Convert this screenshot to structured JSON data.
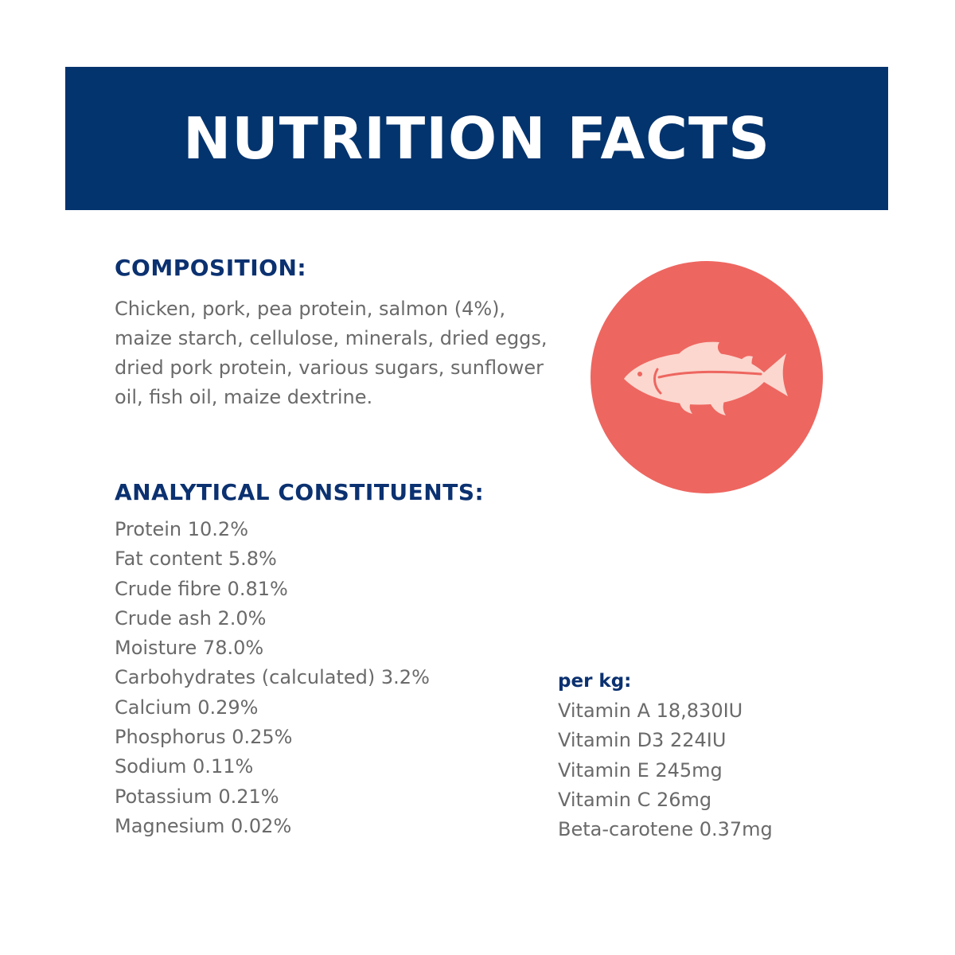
{
  "banner": {
    "title": "NUTRITION FACTS"
  },
  "composition": {
    "heading": "COMPOSITION:",
    "text": "Chicken, pork, pea protein, salmon (4%), maize starch, cellulose, minerals, dried eggs, dried pork protein, various sugars, sunflower oil, fish oil, maize dextrine."
  },
  "constituents": {
    "heading": "ANALYTICAL CONSTITUENTS:",
    "items": [
      "Protein 10.2%",
      "Fat content 5.8%",
      "Crude fibre 0.81%",
      "Crude ash 2.0%",
      "Moisture 78.0%",
      "Carbohydrates (calculated) 3.2%",
      "Calcium 0.29%",
      "Phosphorus 0.25%",
      "Sodium 0.11%",
      "Potassium 0.21%",
      "Magnesium 0.02%"
    ]
  },
  "per_kg": {
    "heading": "per kg:",
    "items": [
      "Vitamin A 18,830IU",
      "Vitamin D3 224IU",
      "Vitamin E 245mg",
      "Vitamin C 26mg",
      "Beta-carotene 0.37mg"
    ]
  },
  "icon": {
    "name": "fish-icon",
    "circle_color": "#ee6660",
    "fish_color": "#fbd7cf"
  },
  "colors": {
    "banner": "#03346e",
    "heading": "#0b3170",
    "body_text": "#6a6a6a"
  }
}
